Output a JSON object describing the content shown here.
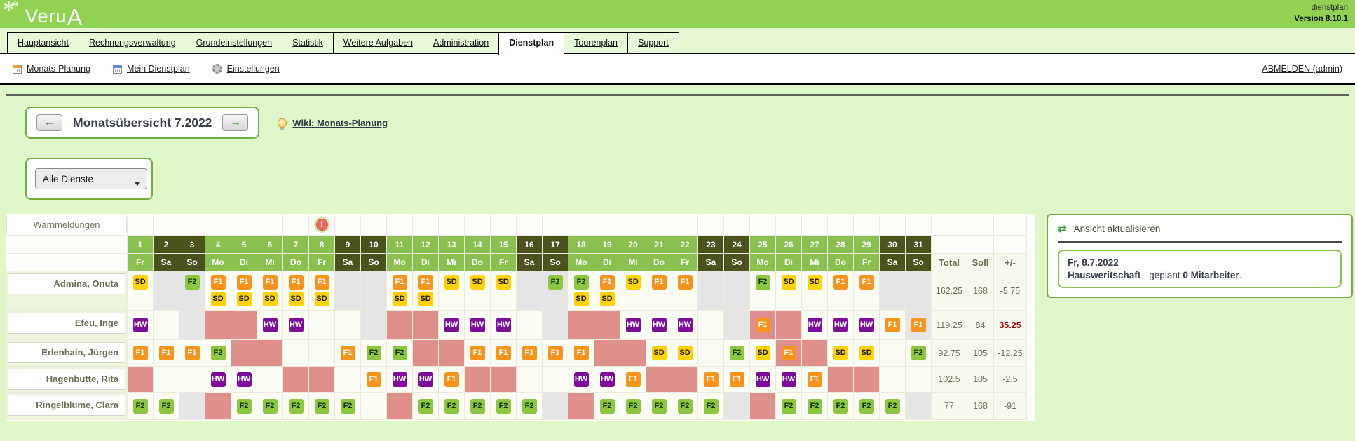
{
  "header": {
    "logo": "VeruA",
    "logo_main": "Veru",
    "logo_accent": "A",
    "app_label": "dienstplan",
    "version_label": "Version 8.10.1"
  },
  "tabs": [
    {
      "label": "Hauptansicht",
      "active": false
    },
    {
      "label": "Rechnungsverwaltung",
      "active": false
    },
    {
      "label": "Grundeinstellungen",
      "active": false
    },
    {
      "label": "Statistik",
      "active": false
    },
    {
      "label": "Weitere Aufgaben",
      "active": false
    },
    {
      "label": "Administration",
      "active": false
    },
    {
      "label": "Dienstplan",
      "active": true
    },
    {
      "label": "Tourenplan",
      "active": false
    },
    {
      "label": "Support",
      "active": false
    }
  ],
  "subnav": {
    "items": [
      {
        "label": "Monats-Planung",
        "icon": "calendar-orange-icon"
      },
      {
        "label": "Mein Dienstplan",
        "icon": "calendar-blue-icon"
      },
      {
        "label": "Einstellungen",
        "icon": "gear-icon"
      }
    ],
    "logout_label": "ABMELDEN (admin)"
  },
  "month_nav": {
    "title": "Monatsübersicht 7.2022",
    "prev_icon": "←",
    "next_icon": "→"
  },
  "wiki_link": "Wiki: Monats-Planung",
  "filter": {
    "selected": "Alle Dienste"
  },
  "roster": {
    "warn_label": "Warnmeldungen",
    "warning_day": 8,
    "days": [
      {
        "n": "1",
        "d": "Fr"
      },
      {
        "n": "2",
        "d": "Sa"
      },
      {
        "n": "3",
        "d": "So"
      },
      {
        "n": "4",
        "d": "Mo"
      },
      {
        "n": "5",
        "d": "Di"
      },
      {
        "n": "6",
        "d": "Mi"
      },
      {
        "n": "7",
        "d": "Do"
      },
      {
        "n": "8",
        "d": "Fr"
      },
      {
        "n": "9",
        "d": "Sa"
      },
      {
        "n": "10",
        "d": "So"
      },
      {
        "n": "11",
        "d": "Mo"
      },
      {
        "n": "12",
        "d": "Di"
      },
      {
        "n": "13",
        "d": "Mi"
      },
      {
        "n": "14",
        "d": "Do"
      },
      {
        "n": "15",
        "d": "Fr"
      },
      {
        "n": "16",
        "d": "Sa"
      },
      {
        "n": "17",
        "d": "So"
      },
      {
        "n": "18",
        "d": "Mo"
      },
      {
        "n": "19",
        "d": "Di"
      },
      {
        "n": "20",
        "d": "Mi"
      },
      {
        "n": "21",
        "d": "Do"
      },
      {
        "n": "22",
        "d": "Fr"
      },
      {
        "n": "23",
        "d": "Sa"
      },
      {
        "n": "24",
        "d": "So"
      },
      {
        "n": "25",
        "d": "Mo"
      },
      {
        "n": "26",
        "d": "Di"
      },
      {
        "n": "27",
        "d": "Mi"
      },
      {
        "n": "28",
        "d": "Do"
      },
      {
        "n": "29",
        "d": "Fr"
      },
      {
        "n": "30",
        "d": "Sa"
      },
      {
        "n": "31",
        "d": "So"
      }
    ],
    "totals_headers": {
      "total": "Total",
      "soll": "Soll",
      "diff": "+/-"
    },
    "shift_types": {
      "SD": {
        "bg": "#ffd200",
        "fg": "#1a1a1a"
      },
      "F1": {
        "bg": "#f8941d",
        "fg": "#ffffff"
      },
      "F2": {
        "bg": "#8dc63f",
        "fg": "#10300a"
      },
      "HW": {
        "bg": "#7c0f99",
        "fg": "#ffffff"
      }
    },
    "cell_colors": {
      "absence_pink": "#df8f8c",
      "weekend_gray": "#e5e5e5",
      "header_green": "#8bc051",
      "weekend_header": "#4b521c"
    },
    "employees": [
      {
        "name": "Admina, Onuta",
        "total": "162.25",
        "soll": "168",
        "diff": "-5.75",
        "diff_alert": false,
        "tall": true,
        "cells": [
          "SD",
          "@g",
          "F2@g",
          "F1+SD",
          "F1+SD",
          "F1+SD",
          "F1+SD",
          "F1+SD",
          "@g",
          "@g",
          "F1+SD",
          "F1+SD",
          "SD",
          "SD",
          "SD",
          "@g",
          "F2@g",
          "F2+SD",
          "F1+SD",
          "SD",
          "F1",
          "F1",
          "@g",
          "@g",
          "F2",
          "SD",
          "SD",
          "F1",
          "F1",
          "@g",
          "@g"
        ]
      },
      {
        "name": "Efeu, Inge",
        "total": "119.25",
        "soll": "84",
        "diff": "35.25",
        "diff_alert": true,
        "tall": false,
        "cells": [
          "HW",
          "",
          "@g",
          "@p",
          "@p",
          "HW",
          "HW",
          "",
          "",
          "@g",
          "@p",
          "@p",
          "HW",
          "HW",
          "HW",
          "",
          "@g",
          "@p",
          "@p",
          "HW",
          "HW",
          "HW",
          "",
          "@g",
          "F1@p",
          "@p",
          "HW",
          "HW",
          "HW",
          "F1",
          "F1@g"
        ]
      },
      {
        "name": "Erlenhain, Jürgen",
        "total": "92.75",
        "soll": "105",
        "diff": "-12.25",
        "diff_alert": false,
        "tall": false,
        "cells": [
          "F1",
          "F1",
          "F1",
          "F2",
          "@p",
          "@p",
          "",
          "",
          "F1",
          "F2",
          "F2",
          "@p",
          "@p",
          "F1",
          "F1",
          "F1",
          "F1",
          "F1",
          "@p",
          "@p",
          "SD",
          "SD",
          "",
          "F2",
          "SD",
          "F1@p",
          "@p",
          "SD",
          "SD",
          "",
          "F2"
        ]
      },
      {
        "name": "Hagenbutte, Rita",
        "total": "102.5",
        "soll": "105",
        "diff": "-2.5",
        "diff_alert": false,
        "tall": false,
        "cells": [
          "@p",
          "",
          "",
          "HW",
          "HW",
          "",
          "@p",
          "@p",
          "",
          "F1",
          "HW",
          "HW",
          "F1",
          "@p",
          "@p",
          "",
          "",
          "HW",
          "HW",
          "F1",
          "@p",
          "@p",
          "F1",
          "F1",
          "HW",
          "HW",
          "F1",
          "@p",
          "@p",
          "",
          ""
        ]
      },
      {
        "name": "Ringelblume, Clara",
        "total": "77",
        "soll": "168",
        "diff": "-91",
        "diff_alert": false,
        "tall": false,
        "cells": [
          "F2",
          "F2",
          "@g",
          "@p",
          "F2",
          "F2",
          "F2",
          "F2",
          "F2",
          "",
          "@p",
          "F2",
          "F2",
          "F2",
          "F2",
          "F2",
          "@g",
          "@p",
          "F2",
          "F2",
          "F2",
          "F2",
          "F2",
          "@g",
          "@p",
          "F2",
          "F2",
          "F2",
          "F2",
          "F2",
          "@g"
        ]
      }
    ]
  },
  "side_panel": {
    "refresh_label": "Ansicht aktualisieren",
    "date": "Fr, 8.7.2022",
    "info_bold1": "Hausweritschaft",
    "info_mid": " - geplant ",
    "info_bold2": "0 Mitarbeiter",
    "info_end": "."
  }
}
